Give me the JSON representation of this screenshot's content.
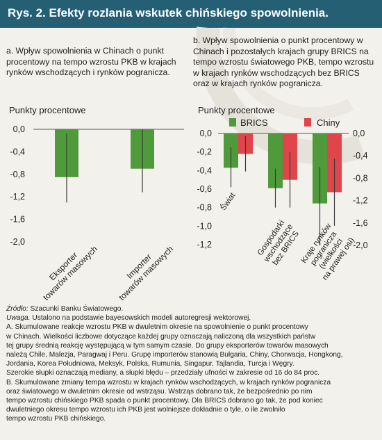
{
  "header": {
    "title": "Rys. 2. Efekty rozlania wskutek chińskiego spowolnienia."
  },
  "colors": {
    "header_bg": "#245f73",
    "green": "#4f9a3b",
    "red": "#e0454b",
    "error_bar": "#3a3a3a",
    "background": "#f3f1ec"
  },
  "chart_data": [
    {
      "type": "bar",
      "title": "a. Wpływ spowolnienia w Chinach o punkt procentowy na tempo wzrostu PKB w krajach rynków wschodzących i rynków pogranicza.",
      "ylabel": "Punkty procentowe",
      "ylim": [
        -2.0,
        0.0
      ],
      "yticks": [
        "0,0",
        "-0,4",
        "-0,8",
        "-1,2",
        "-1,6",
        "-2,0"
      ],
      "categories": [
        "Eksporter towarów masowych",
        "Importer towarów masowych"
      ],
      "values": [
        -0.85,
        -0.7
      ],
      "error_low": [
        -1.3,
        -1.12
      ],
      "error_high": [
        -0.08,
        0.0
      ]
    },
    {
      "type": "bar",
      "title": "b. Wpływ spowolnienia o punkt procentowy w Chinach i pozostałych krajach grupy BRICS na tempo wzrostu światowego PKB, tempo wzrostu w krajach rynków wschodzących bez BRICS oraz w krajach rynków pogranicza.",
      "ylabel": "Punkty procentowe",
      "ylim_left": [
        -1.2,
        0.0
      ],
      "yticks_left": [
        "0,0",
        "-0,2",
        "-0,4",
        "-0,6",
        "-0,8",
        "-1,0",
        "-1,2"
      ],
      "ylim_right": [
        -2.0,
        0.0
      ],
      "yticks_right": [
        "0,0",
        "-0,4",
        "-0,8",
        "-1,2",
        "-1,6",
        "-2,0"
      ],
      "categories": [
        "Świat",
        "Gospodarki wschodzące bez BRICS",
        "Kraje rynków pogranicza (wielkości na prawej osi)"
      ],
      "legend": [
        "BRICS",
        "Chiny"
      ],
      "series": [
        {
          "name": "BRICS",
          "values": [
            -0.37,
            -0.59,
            -1.25
          ],
          "error_low": [
            -0.58,
            -0.8,
            -2.0
          ],
          "error_high": [
            -0.15,
            -0.38,
            -0.6
          ]
        },
        {
          "name": "Chiny",
          "values": [
            -0.22,
            -0.5,
            -1.05
          ],
          "error_low": [
            -0.41,
            -0.8,
            -1.65
          ],
          "error_high": [
            -0.03,
            -0.2,
            -0.45
          ]
        }
      ]
    }
  ],
  "notes": {
    "source_label": "Źródło:",
    "source": " Szacunki Banku Światowego.",
    "caveat_label": "Uwaga.",
    "caveat": " Ustalono na podstawie bayesowskich modeli autoregresji wektorowej.",
    "lines": [
      "A. Skumulowane reakcje wzrostu PKB w dwuletnim okresie na spowolnienie o punkt procentowy",
      "w Chinach. Wielkości liczbowe dotyczące każdej grupy oznaczają naliczoną dla wszystkich państw",
      "tej grupy średnią reakcję występującą w tym samym czasie. Do grupy eksporterów towarów masowych",
      "należą Chile, Malezja, Paragwaj i Peru. Grupę importerów stanowią Bułgaria, Chiny, Chorwacja, Hongkong,",
      "Jordania, Korea Południowa, Meksyk, Polska, Rumunia, Singapur, Tajlandia, Turcja i Węgry.",
      "Szerokie słupki oznaczają mediany, a słupki błędu – przedziały ufności w zakresie od 16 do 84 proc.",
      "B. Skumulowane zmiany tempa wzrostu w krajach rynków wschodzących, w krajach rynków pogranicza",
      "oraz światowego w dwuletnim okresie od wstrząsu. Wstrząs dobrano tak, że bezpośrednio po nim",
      "tempo wzrostu chińskiego PKB spada o punkt procentowy. Dla BRICS dobrano go tak, że pod koniec",
      "dwuletniego okresu tempo wzrostu ich PKB jest wolniejsze dokładnie o tyle, o ile zwolniło",
      "tempo wzrostu PKB chińskiego."
    ]
  }
}
